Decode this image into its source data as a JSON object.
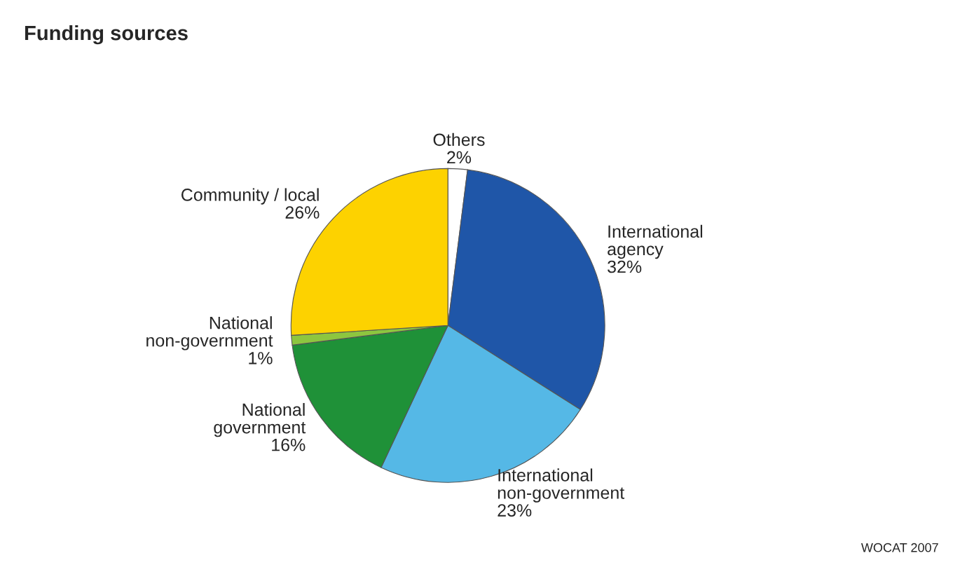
{
  "chart_data": {
    "type": "pie",
    "title": "Funding sources",
    "categories": [
      "Others",
      "International\nagency",
      "International\nnon-government",
      "National\ngovernment",
      "National\nnon-government",
      "Community / local"
    ],
    "values": [
      2,
      32,
      23,
      16,
      1,
      26
    ],
    "value_labels": [
      "2%",
      "32%",
      "23%",
      "16%",
      "1%",
      "26%"
    ],
    "colors": [
      "#ffffff",
      "#1f56a8",
      "#55b8e6",
      "#1f9138",
      "#8dc63f",
      "#fdd200"
    ],
    "annotations": [
      "WOCAT 2007"
    ]
  }
}
